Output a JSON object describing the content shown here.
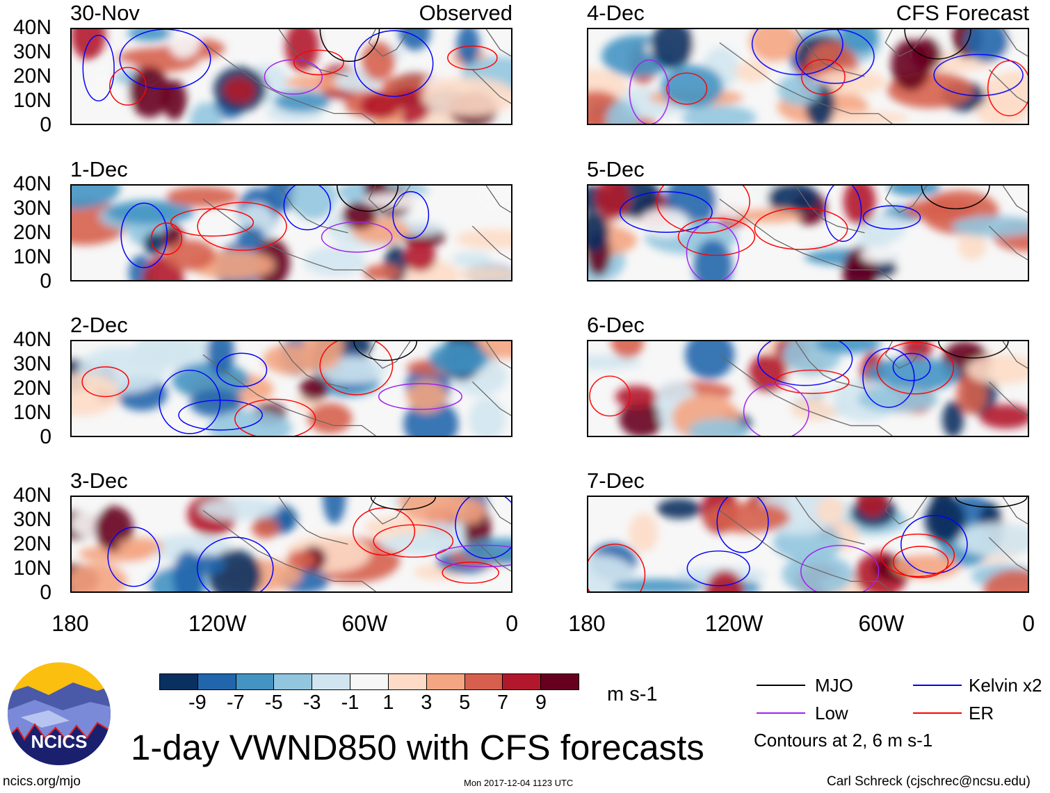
{
  "panels": [
    {
      "title": "30-Nov",
      "label": "Observed",
      "column": "left"
    },
    {
      "title": "1-Dec",
      "column": "left"
    },
    {
      "title": "2-Dec",
      "column": "left"
    },
    {
      "title": "3-Dec",
      "column": "left"
    },
    {
      "title": "4-Dec",
      "label": "CFS Forecast",
      "column": "right"
    },
    {
      "title": "5-Dec",
      "column": "right"
    },
    {
      "title": "6-Dec",
      "column": "right"
    },
    {
      "title": "7-Dec",
      "column": "right"
    }
  ],
  "lat_ticks": [
    "40N",
    "30N",
    "20N",
    "10N",
    "0"
  ],
  "lon_ticks": [
    "180",
    "120W",
    "60W",
    "0"
  ],
  "colorbar": {
    "colors": [
      "#0a3060",
      "#2166ac",
      "#4393c3",
      "#92c5de",
      "#d1e5f0",
      "#f7f7f7",
      "#fddbc7",
      "#f4a582",
      "#d6604d",
      "#b2182b",
      "#67001f"
    ],
    "labels": [
      "-9",
      "-7",
      "-5",
      "-3",
      "-1",
      "1",
      "3",
      "5",
      "7",
      "9"
    ],
    "units": "m s-1"
  },
  "legend": {
    "items": [
      {
        "label": "MJO",
        "color": "#000000"
      },
      {
        "label": "Low",
        "color": "#a020f0"
      },
      {
        "label": "Kelvin x2",
        "color": "#0000ff"
      },
      {
        "label": "ER",
        "color": "#ff0000"
      }
    ],
    "note": "Contours at 2, 6 m s-1"
  },
  "logo_text": "NCICS",
  "title": "1-day VWND850 with CFS forecasts",
  "footer": {
    "url": "ncics.org/mjo",
    "timestamp": "Mon 2017-12-04 1123 UTC",
    "author": "Carl Schreck (cjschrec@ncsu.edu)"
  }
}
